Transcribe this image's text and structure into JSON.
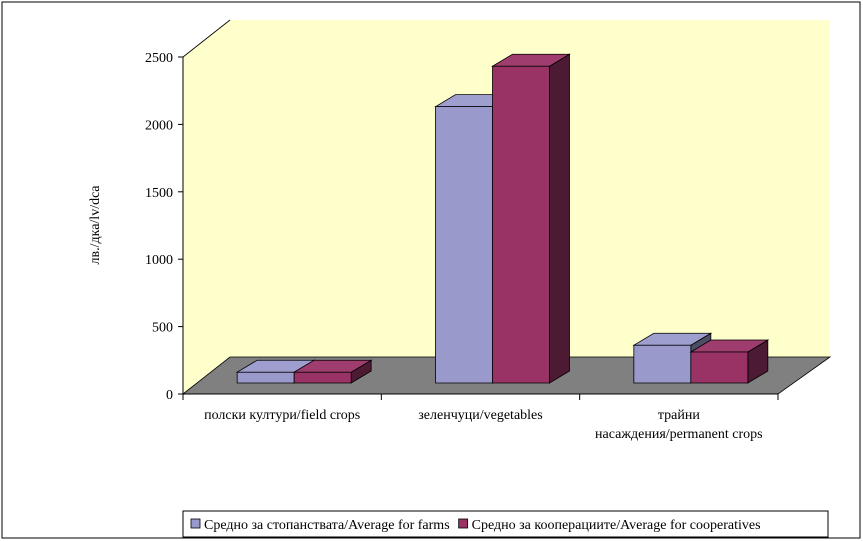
{
  "chart_data": {
    "type": "bar3d",
    "y_label": "лв./дка/lv/dca",
    "categories": [
      "полски култури/field crops",
      "зеленчуци/vegetables",
      "трайни насаждения/permanent crops"
    ],
    "series": [
      {
        "name": "Средно за стопанствата/Average for farms",
        "color": "#9999cc",
        "values": [
          80,
          2050,
          280
        ]
      },
      {
        "name": "Средно за кооперациите/Average for cooperatives",
        "color": "#993366",
        "values": [
          80,
          2350,
          230
        ]
      }
    ],
    "ylim": [
      0,
      2500
    ],
    "yticks": [
      0,
      500,
      1000,
      1500,
      2000,
      2500
    ],
    "legend": "bottom"
  }
}
